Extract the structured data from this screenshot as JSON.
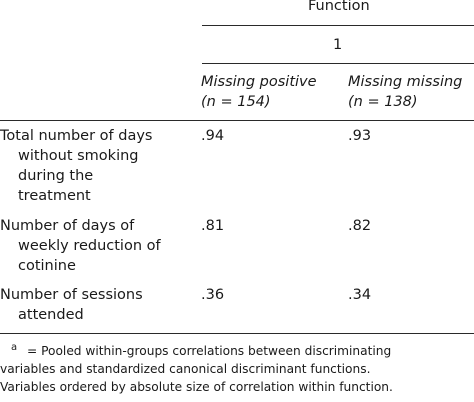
{
  "table": {
    "header": {
      "function_label": "Function",
      "function_number": "1",
      "columns": [
        {
          "line1": "Missing positive",
          "line2": "(n = 154)"
        },
        {
          "line1": "Missing missing",
          "line2": "(n = 138)"
        }
      ]
    },
    "rows": [
      {
        "label_lines": [
          "Total number of days",
          "without smoking",
          "during the",
          "treatment"
        ],
        "values": [
          ".94",
          ".93"
        ]
      },
      {
        "label_lines": [
          "Number of days of",
          "weekly reduction of",
          "cotinine"
        ],
        "values": [
          ".81",
          ".82"
        ]
      },
      {
        "label_lines": [
          "Number of sessions",
          "attended"
        ],
        "values": [
          ".36",
          ".34"
        ]
      }
    ],
    "footnote": {
      "marker": "a",
      "lines": [
        " = Pooled within-groups correlations between discriminating",
        "variables and standardized canonical discriminant functions.",
        "Variables ordered by absolute size of correlation within function."
      ]
    }
  }
}
